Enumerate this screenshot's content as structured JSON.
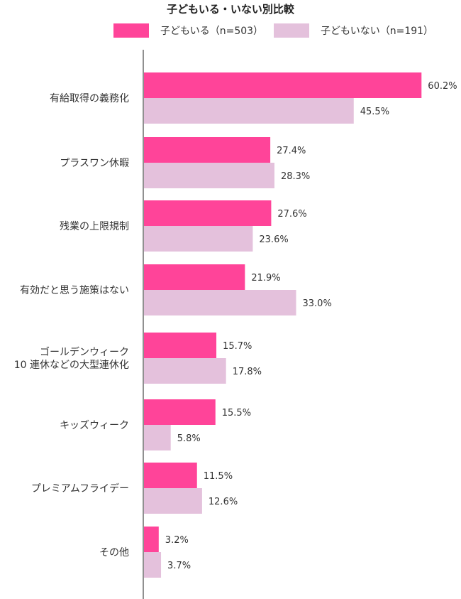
{
  "chart_data": {
    "type": "bar",
    "orientation": "horizontal",
    "title": "子どもいる・いない別比較",
    "categories": [
      [
        "有給取得の義務化"
      ],
      [
        "プラスワン休暇"
      ],
      [
        "残業の上限規制"
      ],
      [
        "有効だと思う施策はない"
      ],
      [
        "ゴールデンウィーク",
        "10 連休などの大型連休化"
      ],
      [
        "キッズウィーク"
      ],
      [
        "プレミアムフライデー"
      ],
      [
        "その他"
      ]
    ],
    "series": [
      {
        "name": "子どもいる（n=503）",
        "color": "#ff4499",
        "values": [
          60.2,
          27.4,
          27.6,
          21.9,
          15.7,
          15.5,
          11.5,
          3.2
        ]
      },
      {
        "name": "子どもいない（n=191）",
        "color": "#e4c1dc",
        "values": [
          45.5,
          28.3,
          23.6,
          33.0,
          17.8,
          5.8,
          12.6,
          3.7
        ]
      }
    ],
    "value_suffix": "%",
    "xlim": [
      0,
      100
    ],
    "legend_position": "top",
    "grid": false
  }
}
